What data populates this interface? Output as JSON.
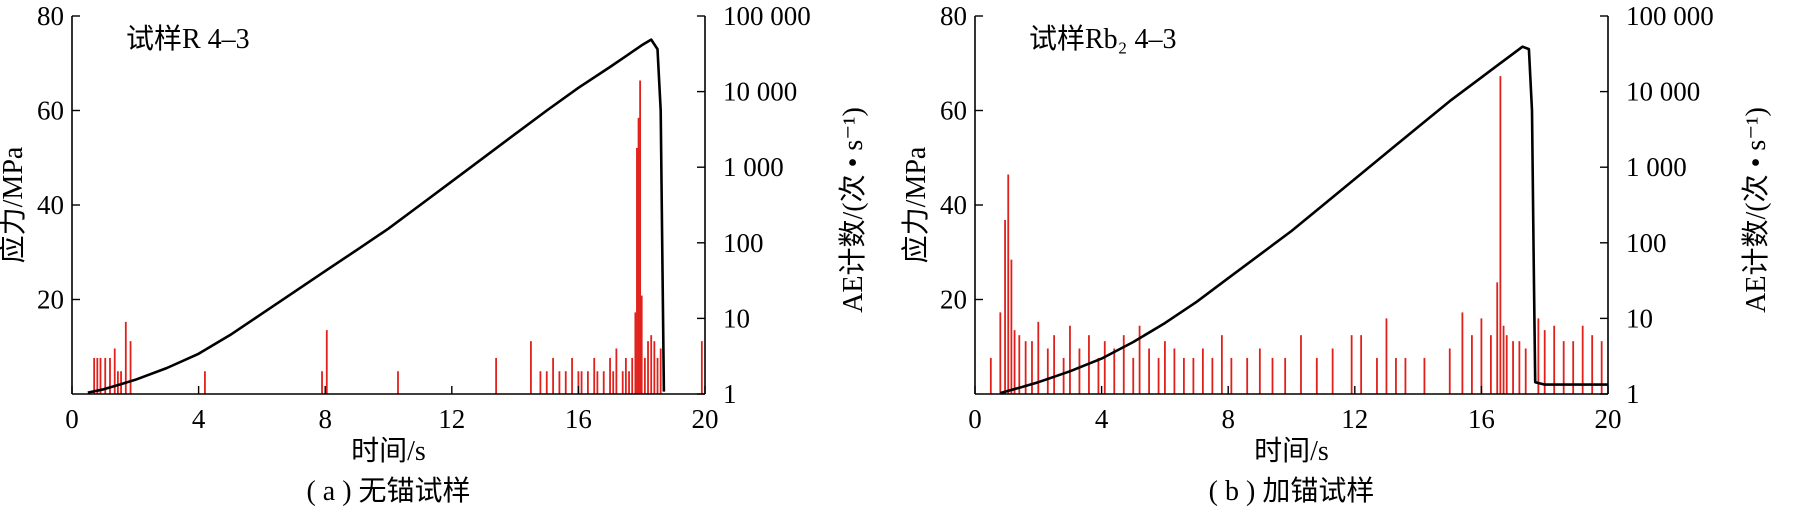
{
  "chart_data": [
    {
      "type": "line",
      "panel": "a",
      "annotation": "试样R 4–3",
      "caption": "( a ) 无锚试样",
      "xlabel": "时间/s",
      "ylabel": "应力/MPa",
      "y2label": "AE计数/(次 • s⁻¹)",
      "xlim": [
        0,
        20
      ],
      "ylim": [
        0,
        80
      ],
      "y2lim": [
        1,
        100000
      ],
      "y2scale": "log",
      "xticks": [
        "0",
        "4",
        "8",
        "12",
        "16",
        "20"
      ],
      "yticks": [
        "20",
        "40",
        "60",
        "80"
      ],
      "y2ticks": [
        "1",
        "10",
        "100",
        "1 000",
        "10 000",
        "100 000"
      ],
      "series": [
        {
          "kind": "line",
          "color": "#000000",
          "x": [
            0.5,
            1.0,
            1.5,
            2.0,
            3.0,
            4.0,
            5.0,
            6.0,
            7.0,
            8.0,
            9.0,
            10.0,
            11.0,
            12.0,
            13.0,
            14.0,
            15.0,
            16.0,
            17.0,
            17.5,
            18.0,
            18.3,
            18.5,
            18.6,
            18.65,
            18.7
          ],
          "y": [
            0.3,
            1.0,
            2.0,
            3.0,
            5.5,
            8.5,
            12.5,
            17.0,
            21.5,
            26.0,
            30.5,
            35.0,
            40.0,
            45.0,
            50.0,
            55.0,
            60.0,
            64.8,
            69.2,
            71.5,
            73.8,
            75.0,
            73.0,
            60.0,
            30.0,
            0.5
          ]
        },
        {
          "kind": "bar",
          "color": "#e0201b",
          "x": [
            0.7,
            0.8,
            0.9,
            1.05,
            1.2,
            1.35,
            1.45,
            1.55,
            1.7,
            1.85,
            4.2,
            7.9,
            8.05,
            10.3,
            13.4,
            14.5,
            14.8,
            15.0,
            15.2,
            15.4,
            15.6,
            15.8,
            16.0,
            16.1,
            16.3,
            16.5,
            16.6,
            16.8,
            17.0,
            17.1,
            17.2,
            17.4,
            17.5,
            17.6,
            17.7,
            17.8,
            17.85,
            17.9,
            17.95,
            18.0,
            18.1,
            18.2,
            18.3,
            18.4,
            18.5,
            18.6,
            19.9
          ],
          "y": [
            3,
            3,
            3,
            3,
            3,
            4,
            2,
            2,
            9,
            5,
            2,
            2,
            7,
            2,
            3,
            5,
            2,
            2,
            3,
            2,
            2,
            3,
            2,
            2,
            2,
            3,
            2,
            2,
            3,
            2,
            4,
            2,
            3,
            2,
            3,
            12,
            1800,
            4500,
            14000,
            20,
            3,
            5,
            6,
            5,
            3,
            4,
            5
          ]
        }
      ]
    },
    {
      "type": "line",
      "panel": "b",
      "annotation": "试样Rb₂ 4–3",
      "caption": "( b ) 加锚试样",
      "xlabel": "时间/s",
      "ylabel": "应力/MPa",
      "y2label": "AE计数/(次 • s⁻¹)",
      "xlim": [
        0,
        20
      ],
      "ylim": [
        0,
        80
      ],
      "y2lim": [
        1,
        100000
      ],
      "y2scale": "log",
      "xticks": [
        "0",
        "4",
        "8",
        "12",
        "16",
        "20"
      ],
      "yticks": [
        "20",
        "40",
        "60",
        "80"
      ],
      "y2ticks": [
        "1",
        "10",
        "100",
        "1 000",
        "10 000",
        "100 000"
      ],
      "series": [
        {
          "kind": "line",
          "color": "#000000",
          "x": [
            0.8,
            1.0,
            1.5,
            2.0,
            3.0,
            4.0,
            5.0,
            6.0,
            7.0,
            8.0,
            9.0,
            10.0,
            11.0,
            12.0,
            13.0,
            14.0,
            15.0,
            16.0,
            16.5,
            17.0,
            17.3,
            17.5,
            17.6,
            17.65,
            17.7,
            18.0,
            19.0,
            20.0
          ],
          "y": [
            0.2,
            0.6,
            1.5,
            2.5,
            4.8,
            7.5,
            11.0,
            15.0,
            19.5,
            24.5,
            29.5,
            34.5,
            40.0,
            45.5,
            51.0,
            56.5,
            62.0,
            67.0,
            69.5,
            72.0,
            73.5,
            73.0,
            60.0,
            30.0,
            2.5,
            2.0,
            2.0,
            2.0
          ]
        },
        {
          "kind": "bar",
          "color": "#e0201b",
          "x": [
            0.5,
            0.8,
            0.95,
            1.05,
            1.15,
            1.25,
            1.4,
            1.6,
            1.8,
            2.0,
            2.3,
            2.5,
            2.8,
            3.0,
            3.3,
            3.6,
            3.9,
            4.1,
            4.4,
            4.7,
            5.0,
            5.2,
            5.5,
            5.8,
            6.0,
            6.3,
            6.6,
            6.9,
            7.2,
            7.5,
            7.8,
            8.1,
            8.6,
            9.0,
            9.4,
            9.8,
            10.3,
            10.8,
            11.3,
            11.9,
            12.2,
            12.7,
            13.0,
            13.3,
            13.6,
            14.2,
            15.0,
            15.4,
            15.7,
            16.0,
            16.3,
            16.5,
            16.6,
            16.7,
            16.8,
            17.0,
            17.2,
            17.4,
            17.8,
            18.0,
            18.3,
            18.6,
            18.9,
            19.2,
            19.5,
            19.8
          ],
          "y": [
            3,
            12,
            200,
            800,
            60,
            7,
            6,
            5,
            5,
            9,
            4,
            6,
            3,
            8,
            4,
            6,
            3,
            5,
            4,
            6,
            3,
            8,
            4,
            3,
            5,
            4,
            3,
            3,
            4,
            3,
            6,
            3,
            3,
            4,
            3,
            3,
            6,
            3,
            4,
            6,
            6,
            3,
            10,
            3,
            3,
            3,
            4,
            12,
            6,
            10,
            6,
            30,
            16000,
            8,
            6,
            5,
            5,
            4,
            10,
            7,
            8,
            5,
            5,
            8,
            6,
            5
          ]
        }
      ]
    }
  ]
}
